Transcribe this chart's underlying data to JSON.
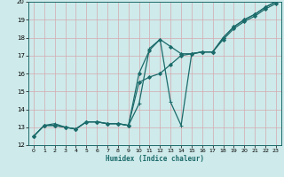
{
  "title": "",
  "xlabel": "Humidex (Indice chaleur)",
  "xlim": [
    -0.5,
    23.5
  ],
  "ylim": [
    12,
    20
  ],
  "xticks": [
    0,
    1,
    2,
    3,
    4,
    5,
    6,
    7,
    8,
    9,
    10,
    11,
    12,
    13,
    14,
    15,
    16,
    17,
    18,
    19,
    20,
    21,
    22,
    23
  ],
  "yticks": [
    12,
    13,
    14,
    15,
    16,
    17,
    18,
    19,
    20
  ],
  "bg_color": "#ceeaea",
  "grid_color": "#d4a8b0",
  "line_color": "#1c6b6b",
  "lines": [
    {
      "x": [
        0,
        1,
        2,
        3,
        4,
        5,
        6,
        7,
        8,
        9,
        10,
        11,
        12,
        13,
        14,
        15,
        16,
        17,
        18,
        19,
        20,
        21,
        22,
        23
      ],
      "y": [
        12.5,
        13.1,
        13.1,
        13.0,
        12.9,
        13.3,
        13.3,
        13.2,
        13.2,
        13.1,
        16.0,
        17.3,
        17.9,
        17.5,
        17.1,
        17.1,
        17.2,
        17.2,
        18.0,
        18.6,
        19.0,
        19.3,
        19.7,
        20.0
      ],
      "marker": "D",
      "markersize": 2.0,
      "linewidth": 0.9
    },
    {
      "x": [
        0,
        1,
        2,
        3,
        4,
        5,
        6,
        7,
        8,
        9,
        10,
        11,
        12,
        13,
        14,
        15,
        16,
        17,
        18,
        19,
        20,
        21,
        22,
        23
      ],
      "y": [
        12.5,
        13.1,
        13.1,
        13.0,
        12.9,
        13.3,
        13.3,
        13.2,
        13.2,
        13.1,
        15.5,
        15.8,
        16.0,
        16.5,
        17.0,
        17.1,
        17.2,
        17.2,
        17.9,
        18.5,
        18.9,
        19.2,
        19.6,
        19.9
      ],
      "marker": "D",
      "markersize": 2.0,
      "linewidth": 0.9
    },
    {
      "x": [
        0,
        1,
        2,
        3,
        4,
        5,
        6,
        7,
        8,
        9,
        10,
        11,
        12,
        13,
        14,
        15,
        16,
        17,
        18,
        19,
        20,
        21,
        22,
        23
      ],
      "y": [
        12.5,
        13.1,
        13.2,
        13.0,
        12.9,
        13.3,
        13.3,
        13.2,
        13.2,
        13.1,
        14.3,
        17.4,
        17.9,
        14.4,
        13.1,
        17.1,
        17.2,
        17.2,
        18.0,
        18.6,
        19.0,
        19.3,
        19.7,
        20.0
      ],
      "marker": "+",
      "markersize": 3.0,
      "linewidth": 0.9
    }
  ]
}
